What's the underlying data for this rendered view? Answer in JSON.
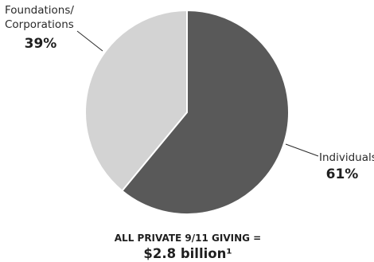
{
  "chart_data": {
    "type": "pie",
    "slices": [
      {
        "label": "Individuals",
        "value": 61,
        "display": "61%",
        "color": "#595959"
      },
      {
        "label_lines": [
          "Foundations/",
          "Corporations"
        ],
        "value": 39,
        "display": "39%",
        "color": "#d3d3d3"
      }
    ],
    "caption": {
      "line1": "ALL PRIVATE 9/11 GIVING =",
      "line2": "$2.8 billion¹"
    }
  }
}
